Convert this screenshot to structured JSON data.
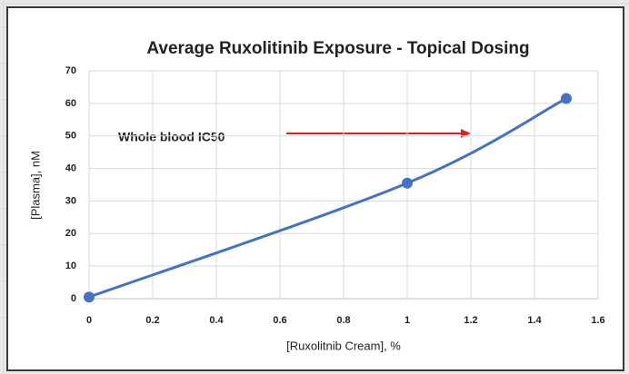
{
  "chart_data": {
    "type": "line",
    "title": "Average Ruxolitinib Exposure - Topical Dosing",
    "x_label": "[Ruxolitnib Cream], %",
    "y_label": "[Plasma], nM",
    "annotation": "Whole blood IC50",
    "x": [
      0,
      1,
      1.5
    ],
    "values": [
      0.5,
      35.5,
      61.5
    ],
    "color": "#4472c4",
    "xlim": [
      0,
      1.6
    ],
    "xticks": [
      0,
      0.2,
      0.4,
      0.6,
      0.8,
      1,
      1.2,
      1.4,
      1.6
    ],
    "ylim": [
      0,
      70
    ],
    "yticks": [
      0,
      10,
      20,
      30,
      40,
      50,
      60,
      70
    ],
    "grid": true,
    "smooth": true
  }
}
